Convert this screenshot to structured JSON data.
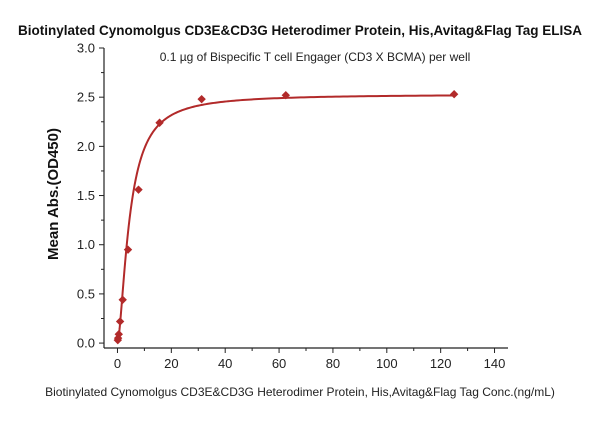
{
  "chart_data": {
    "type": "scatter",
    "title": "Biotinylated Cynomolgus CD3E&CD3G Heterodimer Protein, His,Avitag&Flag Tag ELISA",
    "subtitle": "0.1 µg of Bispecific T cell Engager (CD3 X BCMA) per well",
    "xlabel": "Biotinylated Cynomolgus CD3E&CD3G Heterodimer Protein, His,Avitag&Flag Tag Conc.(ng/mL)",
    "ylabel": "Mean Abs.(OD450)",
    "xlim": [
      -5,
      145
    ],
    "ylim": [
      -0.05,
      3.0
    ],
    "xticks": [
      0,
      20,
      40,
      60,
      80,
      100,
      120,
      140
    ],
    "xtick_labels": [
      "0",
      "20",
      "40",
      "60",
      "80",
      "100",
      "120",
      "140"
    ],
    "yticks": [
      0,
      0.5,
      1.0,
      1.5,
      2.0,
      2.5,
      3.0
    ],
    "ytick_labels": [
      "0.0",
      "0.5",
      "1.0",
      "1.5",
      "2.0",
      "2.5",
      "3.0"
    ],
    "grid": false,
    "legend": "none",
    "series": [
      {
        "marker": "diamond",
        "color": "#b22a2a",
        "x": [
          0.12,
          0.24,
          0.49,
          0.98,
          1.95,
          3.91,
          7.81,
          15.63,
          31.25,
          62.5,
          125
        ],
        "y": [
          0.03,
          0.05,
          0.09,
          0.22,
          0.44,
          0.95,
          1.56,
          2.24,
          2.48,
          2.52,
          2.53
        ]
      }
    ],
    "fit_curve": {
      "color": "#b22a2a",
      "model": "4PL",
      "bottom": 0.0,
      "top": 2.53,
      "ec50": 4.5,
      "hill": 1.6
    }
  }
}
